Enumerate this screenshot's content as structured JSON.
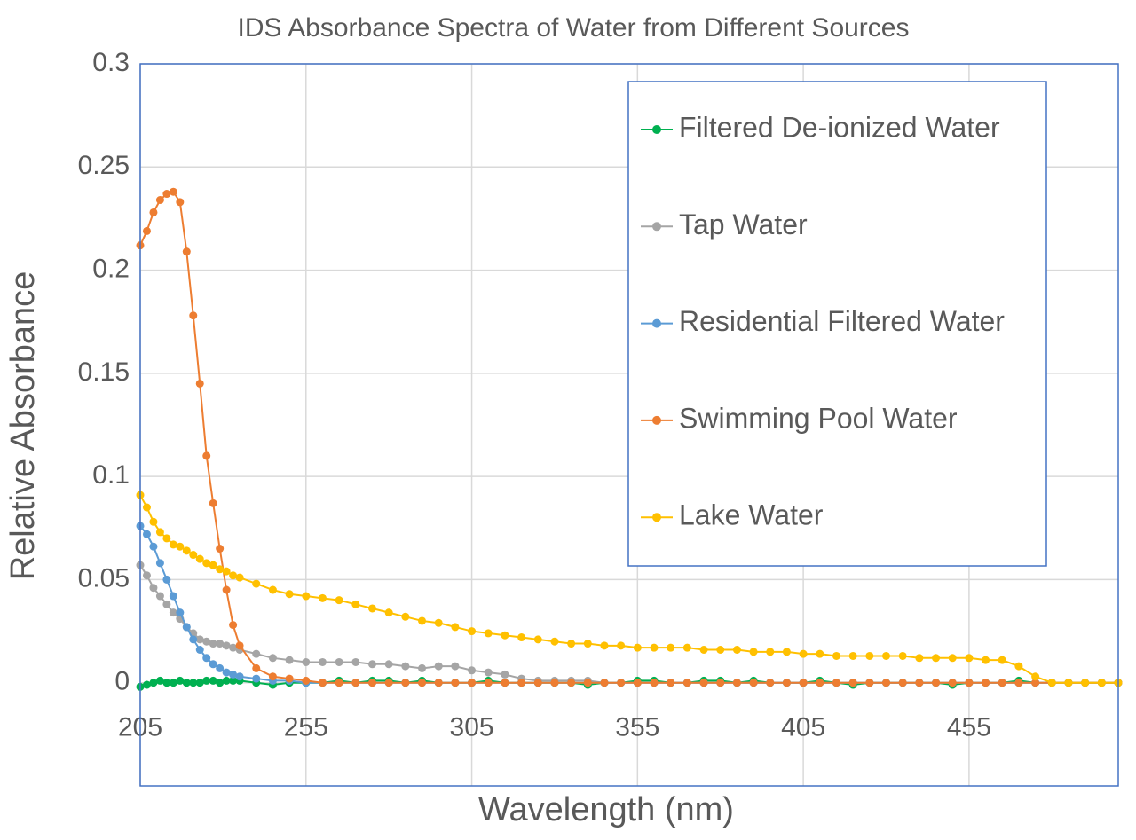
{
  "chart_data": {
    "type": "line",
    "title": "IDS Absorbance Spectra of Water from Different Sources",
    "x_label": "Wavelength (nm)",
    "y_label": "Relative Absorbance",
    "x": [
      205,
      207,
      209,
      211,
      213,
      215,
      217,
      219,
      221,
      223,
      225,
      227,
      229,
      231,
      233,
      235,
      240,
      245,
      250,
      255,
      260,
      265,
      270,
      275,
      280,
      285,
      290,
      295,
      300,
      305,
      310,
      315,
      320,
      325,
      330,
      335,
      340,
      345,
      350,
      355,
      360,
      365,
      370,
      375,
      380,
      385,
      390,
      395,
      400,
      405,
      410,
      415,
      420,
      425,
      430,
      435,
      440,
      445,
      450,
      455,
      460,
      465,
      470,
      475,
      480,
      485,
      490,
      495,
      500
    ],
    "xlim": [
      205,
      500
    ],
    "xticks": [
      205,
      255,
      305,
      355,
      405,
      455
    ],
    "ylim": [
      -0.05,
      0.3
    ],
    "yticks": [
      0,
      0.05,
      0.1,
      0.15,
      0.2,
      0.25,
      0.3
    ],
    "grid": true,
    "legend": "upper right",
    "series": [
      {
        "name": "Filtered De-ionized Water",
        "color": "#00b050",
        "values": [
          -0.002,
          -0.001,
          0,
          0.001,
          0,
          0,
          0.001,
          0,
          0,
          0,
          0.001,
          0.001,
          0,
          0.001,
          0.001,
          0.001,
          0,
          -0.001,
          0,
          0,
          0,
          0.001,
          0,
          0.001,
          0.001,
          0,
          0.001,
          0,
          0,
          0,
          0.001,
          0,
          0,
          0,
          0,
          0,
          -0.001,
          0,
          0,
          0.001,
          0.001,
          0,
          0,
          0.001,
          0.001,
          0,
          0.001,
          0,
          0,
          0,
          0.001,
          0,
          -0.001,
          0,
          0,
          0,
          0,
          0,
          -0.001,
          0,
          0,
          0,
          0.001,
          0,
          0,
          0,
          0,
          0,
          0
        ]
      },
      {
        "name": "Tap Water",
        "color": "#a5a5a5",
        "values": [
          0.057,
          0.052,
          0.046,
          0.042,
          0.038,
          0.034,
          0.031,
          0.027,
          0.024,
          0.021,
          0.02,
          0.019,
          0.019,
          0.018,
          0.017,
          0.016,
          0.014,
          0.012,
          0.011,
          0.01,
          0.01,
          0.01,
          0.01,
          0.009,
          0.009,
          0.008,
          0.007,
          0.008,
          0.008,
          0.006,
          0.005,
          0.004,
          0.002,
          0.001,
          0.001,
          0.001,
          0.001,
          0,
          0,
          0,
          0,
          0,
          0,
          0,
          0,
          0,
          0,
          0,
          0,
          0,
          0,
          0,
          0,
          0,
          0,
          0,
          0,
          0,
          0,
          0,
          0,
          0,
          0,
          0,
          0,
          0,
          0,
          0,
          0
        ]
      },
      {
        "name": "Residential Filtered Water",
        "color": "#5b9bd5",
        "values": [
          0.076,
          0.072,
          0.066,
          0.058,
          0.05,
          0.042,
          0.034,
          0.027,
          0.021,
          0.016,
          0.012,
          0.009,
          0.007,
          0.005,
          0.004,
          0.003,
          0.002,
          0.001,
          0.001,
          0,
          0,
          0,
          0,
          0,
          0,
          0,
          0,
          0,
          0,
          0,
          0,
          0,
          0,
          0,
          0,
          0,
          0,
          0,
          0,
          0,
          0,
          0,
          0,
          0,
          0,
          0,
          0,
          0,
          0,
          0,
          0,
          0,
          0,
          0,
          0,
          0,
          0,
          0,
          0,
          0,
          0,
          0,
          0,
          0,
          0,
          0,
          0,
          0,
          0
        ]
      },
      {
        "name": "Swimming Pool Water",
        "color": "#ed7d31",
        "values": [
          0.212,
          0.219,
          0.228,
          0.234,
          0.237,
          0.238,
          0.233,
          0.209,
          0.178,
          0.145,
          0.11,
          0.087,
          0.065,
          0.045,
          0.028,
          0.018,
          0.007,
          0.003,
          0.002,
          0.001,
          0,
          0,
          0,
          0,
          0,
          0,
          0,
          0,
          0,
          0,
          0,
          0,
          0,
          0,
          0,
          0,
          0,
          0,
          0,
          0,
          0,
          0,
          0,
          0,
          0,
          0,
          0,
          0,
          0,
          0,
          0,
          0,
          0,
          0,
          0,
          0,
          0,
          0,
          0,
          0,
          0,
          0,
          0,
          0,
          0,
          0,
          0,
          0,
          0
        ]
      },
      {
        "name": "Lake Water",
        "color": "#ffc000",
        "values": [
          0.091,
          0.085,
          0.078,
          0.073,
          0.07,
          0.067,
          0.066,
          0.064,
          0.062,
          0.06,
          0.058,
          0.057,
          0.055,
          0.054,
          0.052,
          0.051,
          0.048,
          0.045,
          0.043,
          0.042,
          0.041,
          0.04,
          0.038,
          0.036,
          0.034,
          0.032,
          0.03,
          0.029,
          0.027,
          0.025,
          0.024,
          0.023,
          0.022,
          0.021,
          0.02,
          0.019,
          0.019,
          0.018,
          0.018,
          0.017,
          0.017,
          0.017,
          0.017,
          0.016,
          0.016,
          0.016,
          0.015,
          0.015,
          0.015,
          0.014,
          0.014,
          0.013,
          0.013,
          0.013,
          0.013,
          0.013,
          0.012,
          0.012,
          0.012,
          0.012,
          0.011,
          0.011,
          0.008,
          0.003,
          0,
          0,
          0,
          0,
          0
        ]
      }
    ]
  }
}
